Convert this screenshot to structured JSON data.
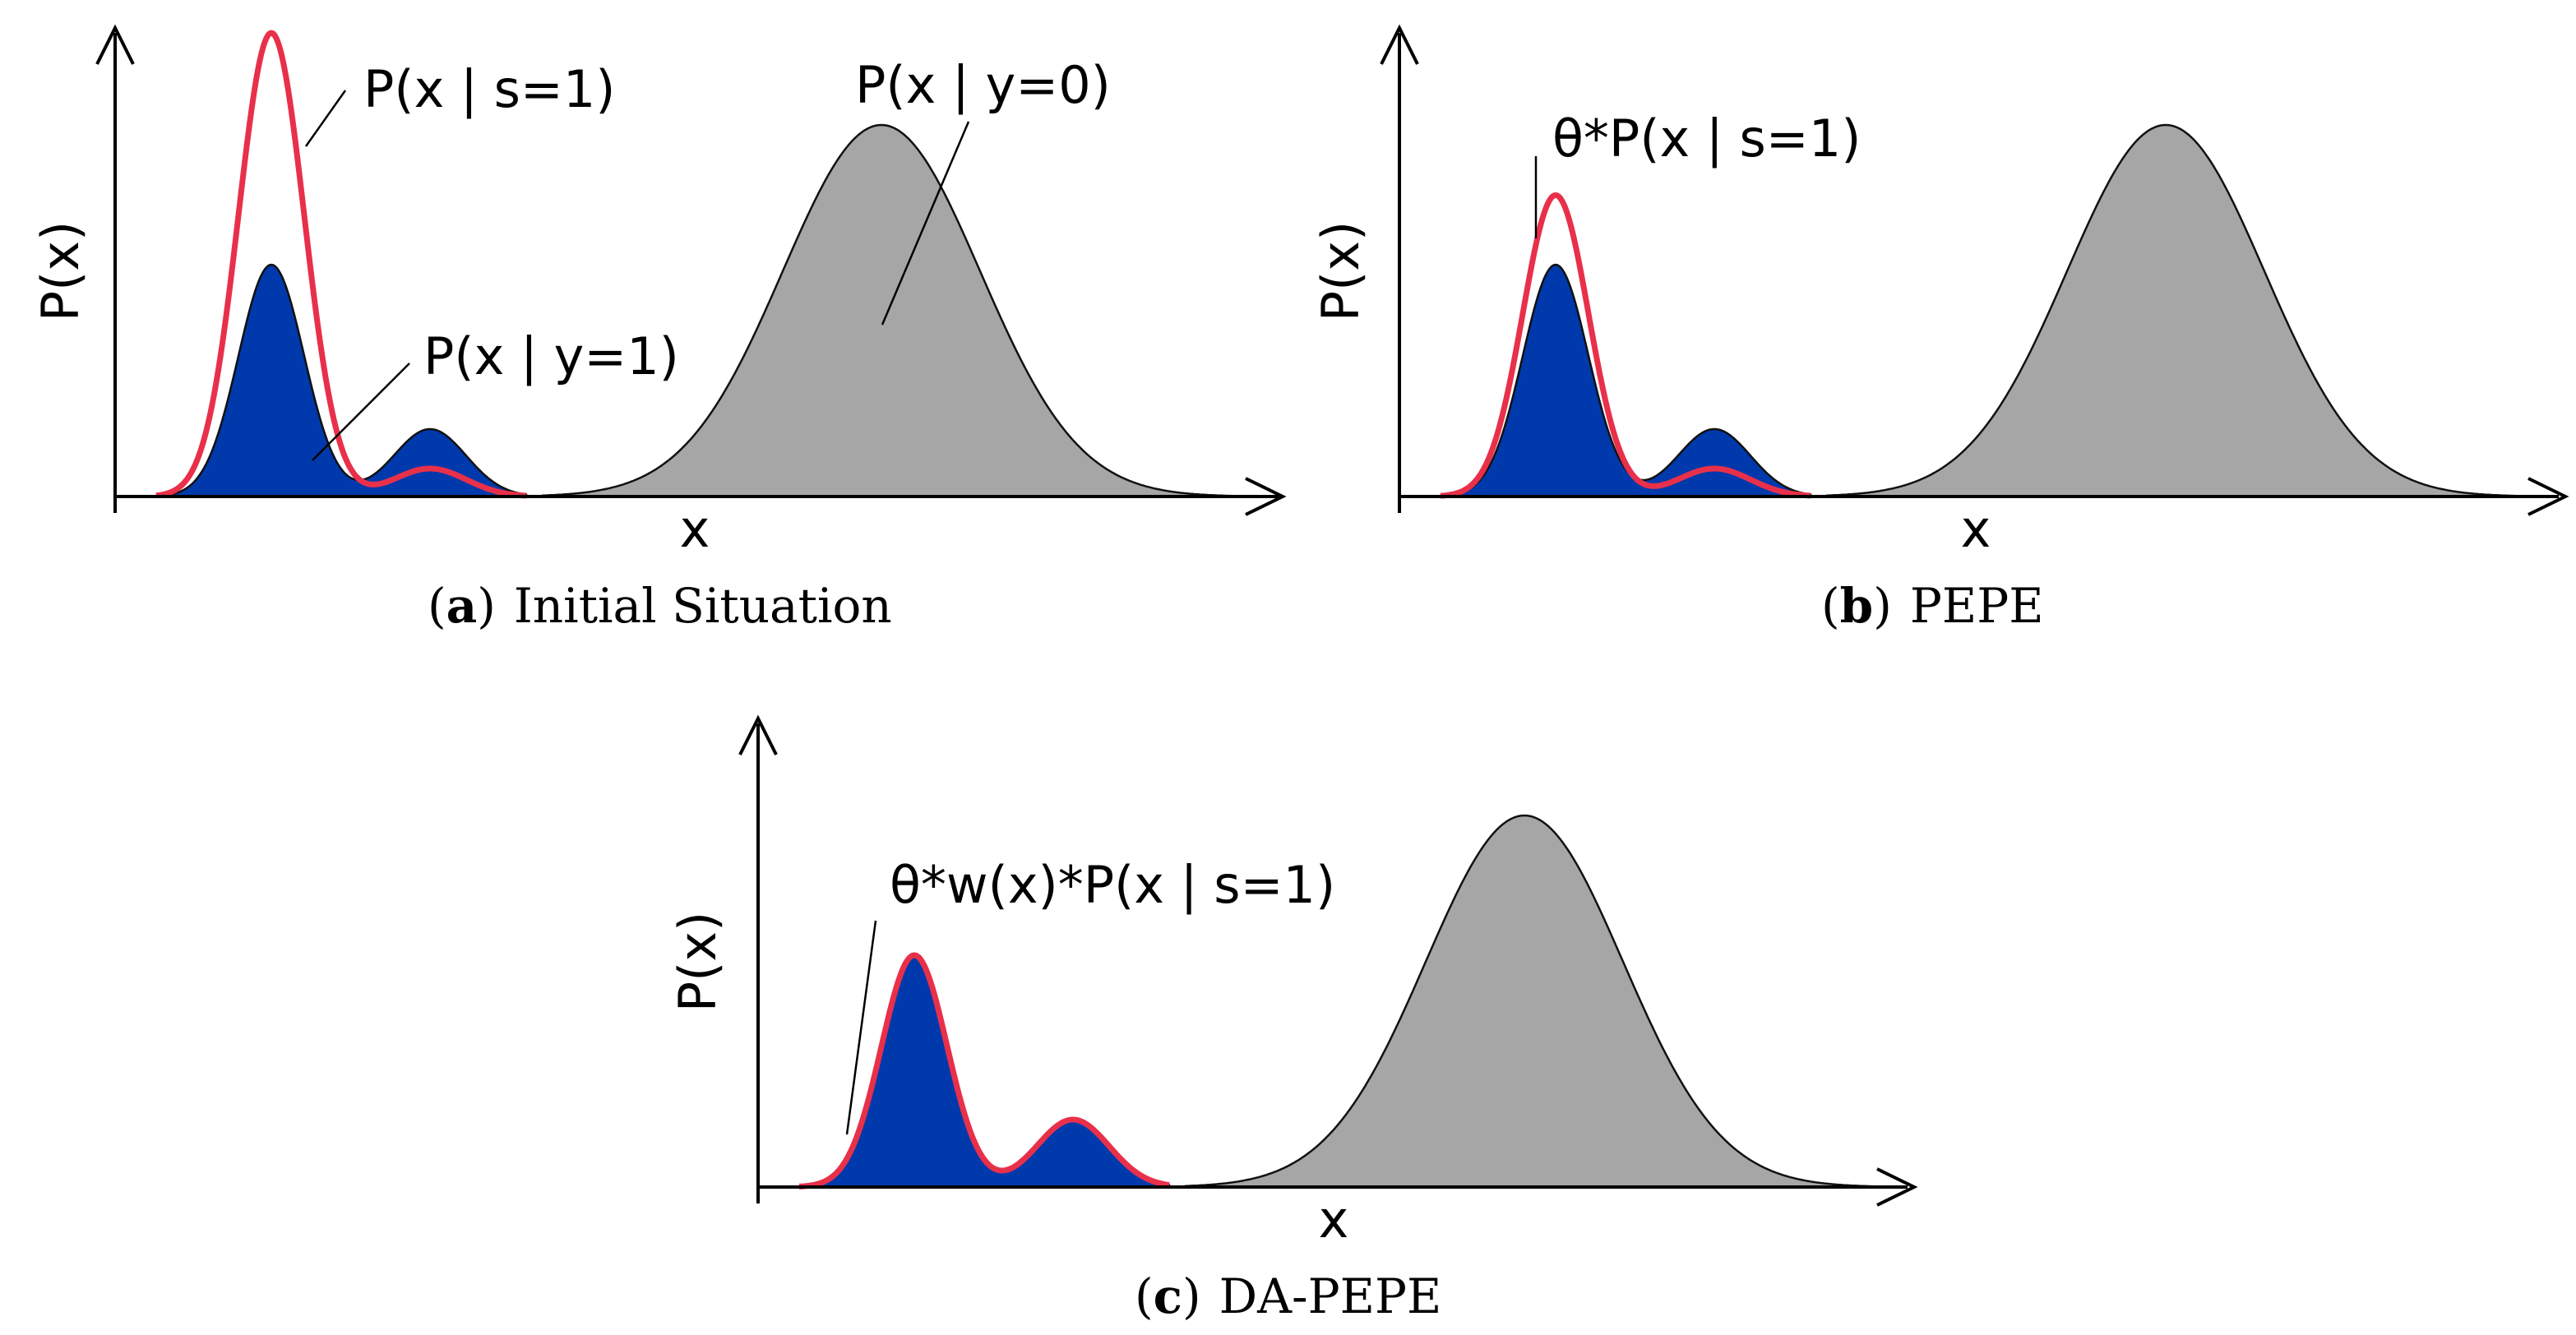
{
  "colors": {
    "positive_fill": "#0039AC",
    "negative_fill": "#A6A6A6",
    "estimate_line": "#E8304A",
    "outline": "#111111",
    "axis": "#000000"
  },
  "panels": [
    {
      "id": "a",
      "y_axis_label": "P(x)",
      "x_axis_label": "x",
      "caption_letter": "a",
      "caption_text": "Initial Situation",
      "annotations": [
        "P(x | s=1)",
        "P(x | y=1)",
        "P(x | y=0)"
      ],
      "red_curve_scale": 2.0
    },
    {
      "id": "b",
      "y_axis_label": "P(x)",
      "x_axis_label": "x",
      "caption_letter": "b",
      "caption_text": "PEPE",
      "annotations": [
        "θ*P(x | s=1)"
      ],
      "red_curve_scale": 1.3
    },
    {
      "id": "c",
      "y_axis_label": "P(x)",
      "x_axis_label": "x",
      "caption_letter": "c",
      "caption_text": "DA-PEPE",
      "annotations": [
        "θ*w(x)*P(x | s=1)"
      ],
      "red_curve_scale": 1.0
    }
  ]
}
